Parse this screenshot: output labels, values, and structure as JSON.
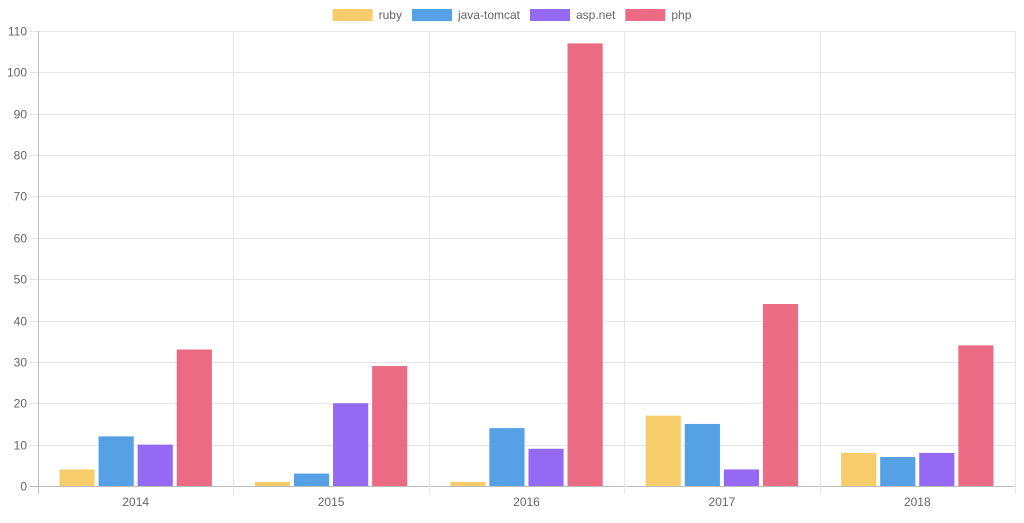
{
  "chart_data": {
    "type": "bar",
    "title": "",
    "xlabel": "",
    "ylabel": "",
    "categories": [
      "2014",
      "2015",
      "2016",
      "2017",
      "2018"
    ],
    "ylim": [
      0,
      110
    ],
    "yticks": [
      0,
      10,
      20,
      30,
      40,
      50,
      60,
      70,
      80,
      90,
      100,
      110
    ],
    "grid": true,
    "legend_position": "top",
    "series": [
      {
        "name": "ruby",
        "color": "#f7cd6b",
        "values": [
          4,
          1,
          1,
          17,
          8
        ]
      },
      {
        "name": "java-tomcat",
        "color": "#56a0e5",
        "values": [
          12,
          3,
          14,
          15,
          7
        ]
      },
      {
        "name": "asp.net",
        "color": "#9469f3",
        "values": [
          10,
          20,
          9,
          4,
          8
        ]
      },
      {
        "name": "php",
        "color": "#ec6b84",
        "values": [
          33,
          29,
          107,
          44,
          34
        ]
      }
    ]
  }
}
